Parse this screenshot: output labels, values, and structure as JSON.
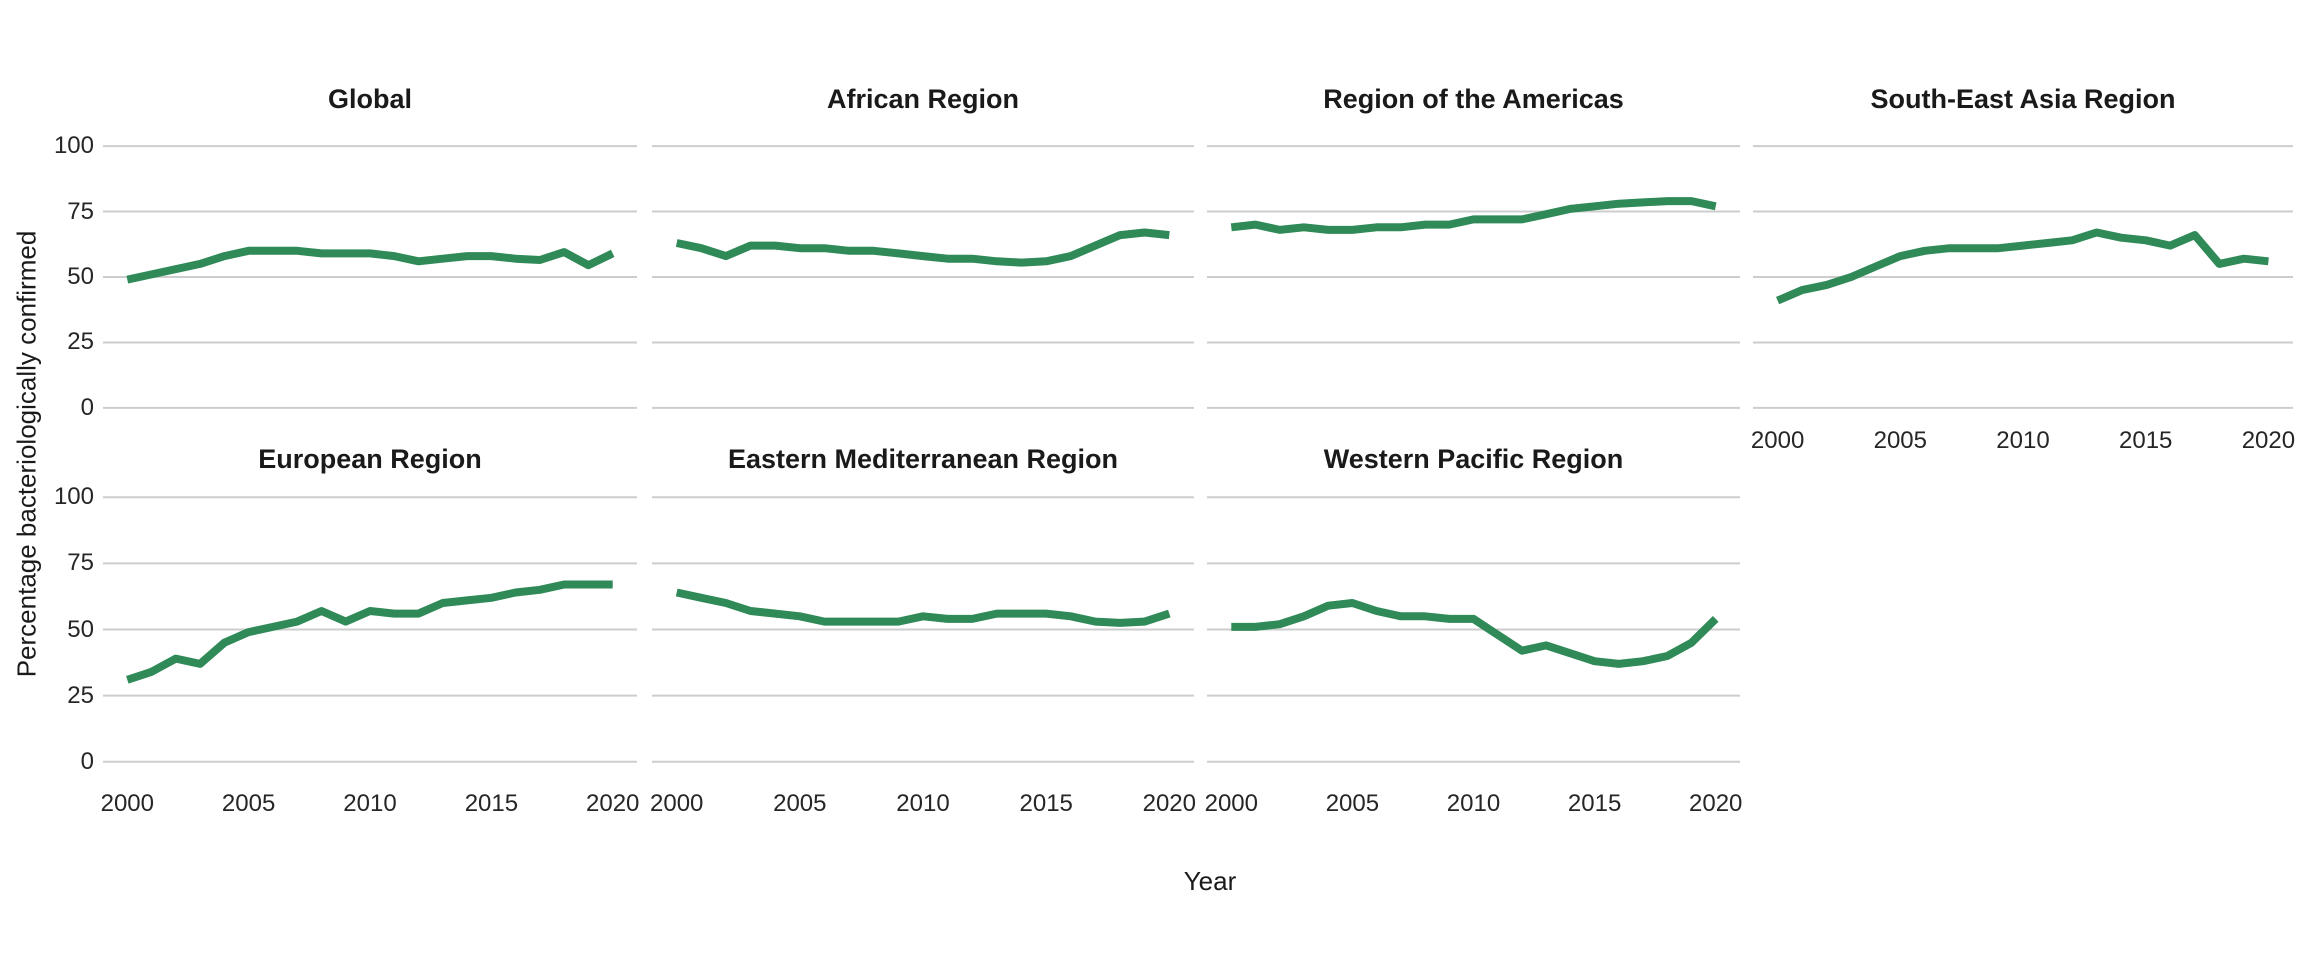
{
  "figure": {
    "y_axis_title": "Percentage bacteriologically confirmed",
    "x_axis_title": "Year",
    "line_color": "#2f8a57",
    "grid_color": "#cdcdcd",
    "title_color": "#1a1a1a",
    "axis_text_color": "#262626",
    "background_color": "#ffffff",
    "y_ticks": [
      "100",
      "75",
      "50",
      "25",
      "0"
    ],
    "x_ticks": [
      "2000",
      "2005",
      "2010",
      "2015",
      "2020"
    ]
  },
  "chart_data": {
    "type": "line",
    "title": "",
    "xlabel": "Year",
    "ylabel": "Percentage bacteriologically confirmed",
    "ylim": [
      0,
      100
    ],
    "yticks": [
      0,
      25,
      50,
      75,
      100
    ],
    "xticks": [
      2000,
      2005,
      2010,
      2015,
      2020
    ],
    "grid": "horizontal-major-only",
    "legend_position": "none",
    "layout": "facets: 4 columns x 2 rows; row 1: Global, African Region, Region of the Americas, South-East Asia Region; row 2: European Region, Eastern Mediterranean Region, Western Pacific Region; x axis labels shown under bottom panel of each column",
    "x": [
      2000,
      2001,
      2002,
      2003,
      2004,
      2005,
      2006,
      2007,
      2008,
      2009,
      2010,
      2011,
      2012,
      2013,
      2014,
      2015,
      2016,
      2017,
      2018,
      2019,
      2020
    ],
    "series": [
      {
        "name": "Global",
        "values": [
          49,
          51,
          53,
          55,
          58,
          60,
          60,
          60,
          59,
          59,
          59,
          58,
          56,
          57,
          58,
          58,
          57,
          56.5,
          59.5,
          54.5,
          59
        ]
      },
      {
        "name": "African Region",
        "values": [
          63,
          61,
          58,
          62,
          62,
          61,
          61,
          60,
          60,
          59,
          58,
          57,
          57,
          56,
          55.5,
          56,
          58,
          62,
          66,
          67,
          66
        ]
      },
      {
        "name": "Region of the Americas",
        "values": [
          69,
          70,
          68,
          69,
          68,
          68,
          69,
          69,
          70,
          70,
          72,
          72,
          72,
          74,
          76,
          77,
          78,
          78.5,
          79,
          79,
          77
        ]
      },
      {
        "name": "South-East Asia Region",
        "values": [
          41,
          45,
          47,
          50,
          54,
          58,
          60,
          61,
          61,
          61,
          62,
          63,
          64,
          67,
          65,
          64,
          62,
          66,
          55,
          57,
          56
        ]
      },
      {
        "name": "European Region",
        "values": [
          31,
          34,
          39,
          37,
          45,
          49,
          51,
          53,
          57,
          53,
          57,
          56,
          56,
          60,
          61,
          62,
          64,
          65,
          67,
          67,
          67
        ]
      },
      {
        "name": "Eastern Mediterranean Region",
        "values": [
          64,
          62,
          60,
          57,
          56,
          55,
          53,
          53,
          53,
          53,
          55,
          54,
          54,
          56,
          56,
          56,
          55,
          53,
          52.5,
          53,
          56
        ]
      },
      {
        "name": "Western Pacific Region",
        "values": [
          51,
          51,
          52,
          55,
          59,
          60,
          57,
          55,
          55,
          54,
          54,
          48,
          42,
          44,
          41,
          38,
          37,
          38,
          40,
          45,
          54
        ]
      }
    ]
  }
}
